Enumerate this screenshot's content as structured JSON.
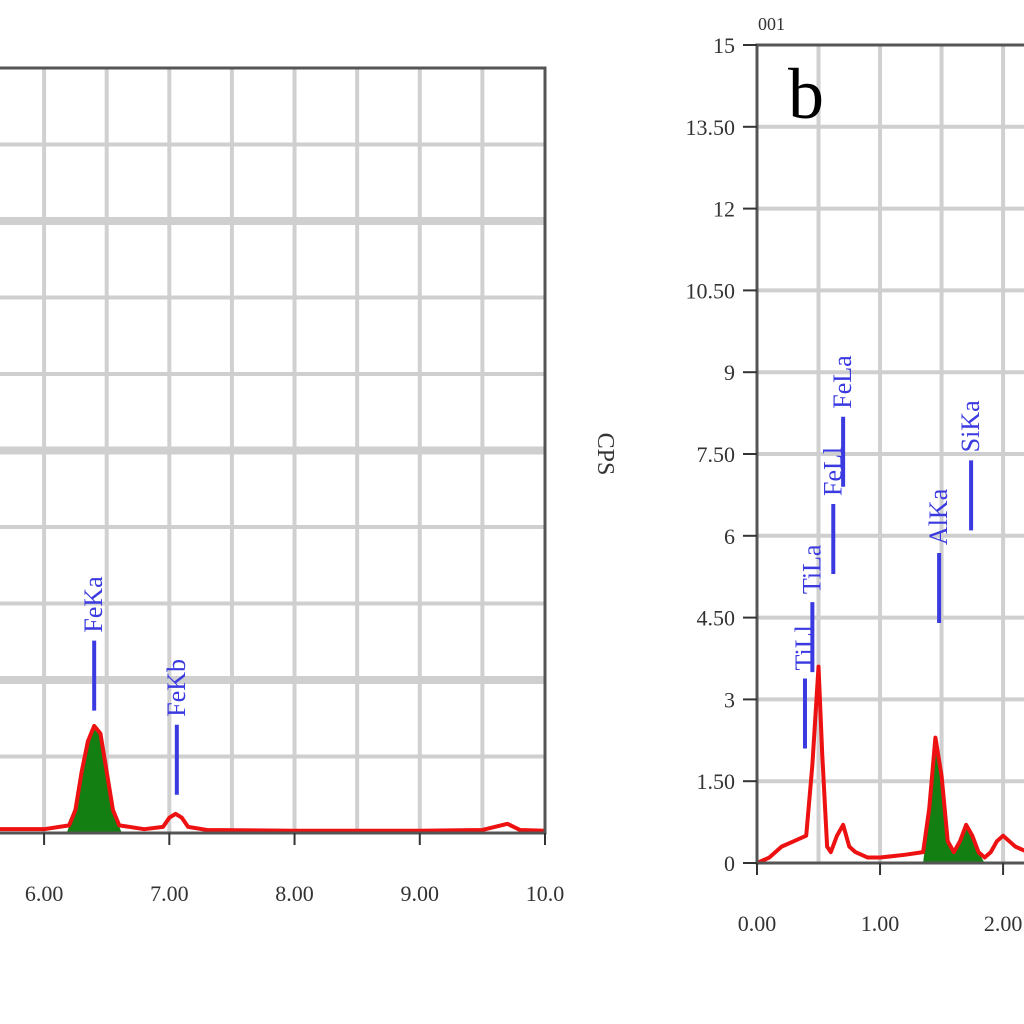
{
  "chart_data": [
    {
      "type": "line",
      "xlim": [
        5.6,
        10.0
      ],
      "ylim": [
        0,
        100
      ],
      "x_ticks": [
        {
          "value": 6,
          "label": "6.00"
        },
        {
          "value": 7,
          "label": "7.00"
        },
        {
          "value": 8,
          "label": "8.00"
        },
        {
          "value": 9,
          "label": "9.00"
        },
        {
          "value": 10,
          "label": "10.0"
        }
      ],
      "grid": true,
      "series": [
        {
          "style": "red-line",
          "color": "#ee1111",
          "x": [
            5.6,
            6.0,
            6.2,
            6.25,
            6.3,
            6.35,
            6.4,
            6.45,
            6.5,
            6.55,
            6.6,
            6.8,
            6.95,
            7.0,
            7.05,
            7.1,
            7.15,
            7.3,
            8.0,
            9.0,
            9.5,
            9.7,
            9.8,
            10.0
          ],
          "y": [
            0.5,
            0.5,
            1,
            3,
            8,
            12,
            14,
            13,
            8,
            3,
            1,
            0.5,
            0.8,
            2.0,
            2.5,
            2.0,
            0.8,
            0.4,
            0.3,
            0.3,
            0.4,
            1.2,
            0.4,
            0.3
          ]
        },
        {
          "style": "green-peak",
          "color": "#137f13",
          "x": [
            6.18,
            6.25,
            6.3,
            6.35,
            6.4,
            6.45,
            6.5,
            6.55,
            6.62
          ],
          "y": [
            0,
            3,
            8,
            12,
            14,
            13,
            8,
            3,
            0
          ]
        }
      ],
      "peak_labels": [
        {
          "label": "FeKa",
          "x": 6.4,
          "y": 16
        },
        {
          "label": "FeKb",
          "x": 7.06,
          "y": 5
        }
      ]
    },
    {
      "panel_label": "b",
      "type": "line",
      "ylabel": "CPS",
      "xlim": [
        0,
        2.3
      ],
      "ylim": [
        0,
        15
      ],
      "y_ticks": [
        "0",
        "1.50",
        "3",
        "4.50",
        "6",
        "7.50",
        "9",
        "10.50",
        "12",
        "13.50",
        "15"
      ],
      "y_tick_values": [
        0,
        1.5,
        3,
        4.5,
        6,
        7.5,
        9,
        10.5,
        12,
        13.5,
        15
      ],
      "x_ticks": [
        {
          "value": 0,
          "label": "0.00"
        },
        {
          "value": 1,
          "label": "1.00"
        },
        {
          "value": 2,
          "label": "2.00"
        }
      ],
      "corner_label": "001",
      "grid": true,
      "series": [
        {
          "style": "red-line",
          "color": "#ee1111",
          "x": [
            0,
            0.1,
            0.2,
            0.3,
            0.4,
            0.45,
            0.5,
            0.53,
            0.57,
            0.6,
            0.65,
            0.7,
            0.75,
            0.8,
            0.9,
            1.0,
            1.2,
            1.35,
            1.4,
            1.45,
            1.5,
            1.55,
            1.6,
            1.65,
            1.7,
            1.75,
            1.8,
            1.85,
            1.9,
            1.95,
            2.0,
            2.05,
            2.1,
            2.2,
            2.3
          ],
          "y": [
            0,
            0.1,
            0.3,
            0.4,
            0.5,
            1.8,
            3.6,
            2.0,
            0.3,
            0.2,
            0.5,
            0.7,
            0.3,
            0.2,
            0.1,
            0.1,
            0.15,
            0.2,
            1.0,
            2.3,
            1.6,
            0.4,
            0.2,
            0.4,
            0.7,
            0.5,
            0.2,
            0.1,
            0.2,
            0.4,
            0.5,
            0.4,
            0.3,
            0.2,
            0.2
          ]
        },
        {
          "style": "green-peak",
          "color": "#137f13",
          "x": [
            1.35,
            1.4,
            1.45,
            1.5,
            1.55,
            1.6,
            1.65,
            1.7,
            1.75,
            1.8,
            1.85
          ],
          "y": [
            0,
            1.0,
            2.3,
            1.6,
            0.4,
            0.2,
            0.4,
            0.7,
            0.5,
            0.2,
            0
          ]
        }
      ],
      "peak_labels": [
        {
          "label": "TiLl",
          "x": 0.39,
          "y": 2.1
        },
        {
          "label": "TiLa",
          "x": 0.45,
          "y": 3.5
        },
        {
          "label": "FeLl",
          "x": 0.62,
          "y": 5.3
        },
        {
          "label": "FeLa",
          "x": 0.7,
          "y": 6.9
        },
        {
          "label": "AlKa",
          "x": 1.48,
          "y": 4.4
        },
        {
          "label": "SiKa",
          "x": 1.74,
          "y": 6.1
        }
      ]
    }
  ]
}
